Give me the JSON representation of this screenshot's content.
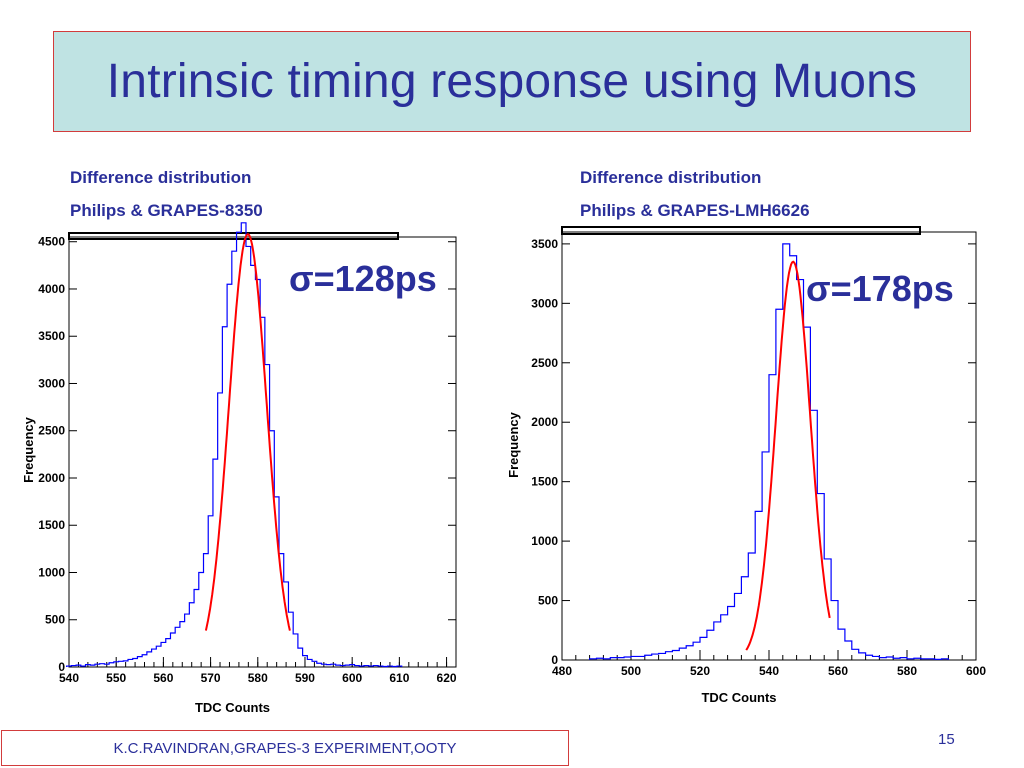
{
  "slide": {
    "title": "Intrinsic timing response using Muons",
    "footer": "K.C.RAVINDRAN,GRAPES-3 EXPERIMENT,OOTY",
    "page_number": "15",
    "colors": {
      "title_bg": "#bfe3e3",
      "border": "#d23c3c",
      "text": "#2a2f9a",
      "histogram": "#0000ff",
      "fit": "#ff0000"
    }
  },
  "chart_data": [
    {
      "type": "histogram",
      "caption_line1": "Difference distribution",
      "caption_line2": "Philips & GRAPES-8350",
      "annotation": "σ=128ps",
      "xlabel": "TDC Counts",
      "ylabel": "Frequency",
      "xlim": [
        540,
        622
      ],
      "ylim": [
        0,
        4550
      ],
      "xticks": [
        540,
        550,
        560,
        570,
        580,
        590,
        600,
        610,
        620
      ],
      "yticks": [
        0,
        500,
        1000,
        1500,
        2000,
        2500,
        3000,
        3500,
        4000,
        4500
      ],
      "fit": {
        "mean": 577.9,
        "sigma": 4.0,
        "amplitude": 4580,
        "range": [
          569.0,
          586.8
        ]
      },
      "series": [
        {
          "x": [
            540,
            541,
            542,
            543,
            544,
            545,
            546,
            547,
            548,
            549,
            550,
            551,
            552,
            553,
            554,
            555,
            556,
            557,
            558,
            559,
            560,
            561,
            562,
            563,
            564,
            565,
            566,
            567,
            568,
            569,
            570,
            571,
            572,
            573,
            574,
            575,
            576,
            577,
            578,
            579,
            580,
            581,
            582,
            583,
            584,
            585,
            586,
            587,
            588,
            589,
            590,
            591,
            592,
            593,
            594,
            595,
            596,
            597,
            598,
            599,
            600,
            601,
            602,
            603,
            604,
            605,
            606,
            607,
            608,
            609,
            610
          ],
          "values": [
            10,
            15,
            20,
            10,
            25,
            20,
            30,
            35,
            30,
            45,
            55,
            60,
            65,
            80,
            90,
            110,
            130,
            160,
            190,
            220,
            260,
            300,
            360,
            420,
            480,
            560,
            680,
            820,
            1000,
            1200,
            1600,
            2200,
            2900,
            3600,
            4050,
            4400,
            4600,
            4700,
            4450,
            4250,
            4100,
            3700,
            3200,
            2500,
            1800,
            1200,
            900,
            580,
            350,
            200,
            120,
            80,
            60,
            40,
            30,
            25,
            30,
            20,
            15,
            20,
            25,
            15,
            10,
            15,
            10,
            15,
            10,
            5,
            10,
            5,
            10
          ]
        }
      ]
    },
    {
      "type": "histogram",
      "caption_line1": "Difference distribution",
      "caption_line2": "Philips & GRAPES-LMH6626",
      "annotation": "σ=178ps",
      "xlabel": "TDC Counts",
      "ylabel": "Frequency",
      "xlim": [
        480,
        600
      ],
      "ylim": [
        0,
        3600
      ],
      "xticks": [
        480,
        500,
        520,
        540,
        560,
        580,
        600
      ],
      "yticks": [
        0,
        500,
        1000,
        1500,
        2000,
        2500,
        3000,
        3500
      ],
      "fit": {
        "mean": 547.0,
        "sigma": 5.0,
        "amplitude": 3350,
        "range": [
          533.4,
          557.6
        ]
      },
      "series": [
        {
          "x": [
            489,
            491,
            493,
            495,
            497,
            499,
            501,
            503,
            505,
            507,
            509,
            511,
            513,
            515,
            517,
            519,
            521,
            523,
            525,
            527,
            529,
            531,
            533,
            535,
            537,
            539,
            541,
            543,
            545,
            547,
            549,
            551,
            553,
            555,
            557,
            559,
            561,
            563,
            565,
            567,
            569,
            571,
            573,
            575,
            577,
            579,
            581,
            583,
            585,
            587,
            589,
            591
          ],
          "values": [
            10,
            15,
            10,
            20,
            20,
            25,
            30,
            30,
            40,
            50,
            55,
            70,
            80,
            100,
            120,
            150,
            190,
            250,
            320,
            380,
            450,
            560,
            700,
            900,
            1250,
            1750,
            2400,
            2950,
            3500,
            3400,
            3200,
            2800,
            2100,
            1400,
            850,
            500,
            260,
            160,
            90,
            60,
            40,
            30,
            20,
            25,
            15,
            20,
            10,
            15,
            10,
            10,
            5,
            10
          ]
        }
      ]
    }
  ]
}
